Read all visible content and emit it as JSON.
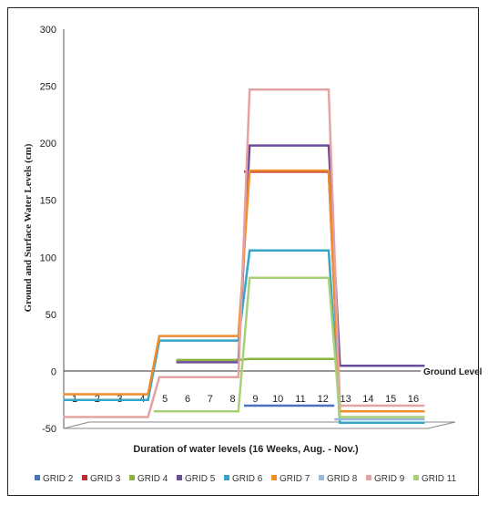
{
  "chart_data": {
    "type": "line",
    "title": "",
    "xlabel": "Duration of water levels (16 Weeks, Aug. - Nov.)",
    "ylabel": "Ground and Surface Water Levels (cm)",
    "ylim": [
      -50,
      300
    ],
    "yticks": [
      "300",
      "250",
      "200",
      "150",
      "100",
      "50",
      "0",
      "-50"
    ],
    "xticks": [
      "1",
      "2",
      "3",
      "4",
      "5",
      "6",
      "7",
      "8",
      "9",
      "10",
      "11",
      "12",
      "13",
      "14",
      "15",
      "16"
    ],
    "x": [
      1,
      2,
      3,
      4,
      5,
      6,
      7,
      8,
      9,
      10,
      11,
      12,
      13,
      14,
      15,
      16
    ],
    "annotation": "Ground Level",
    "grid": false,
    "legend_position": "bottom",
    "series": [
      {
        "name": "GRID 2",
        "color": "#4a72b8",
        "values": [
          null,
          null,
          null,
          null,
          null,
          null,
          null,
          null,
          -30,
          -30,
          -30,
          -30,
          null,
          null,
          null,
          null
        ]
      },
      {
        "name": "GRID 3",
        "color": "#b83232",
        "values": [
          null,
          null,
          null,
          null,
          null,
          null,
          null,
          null,
          175,
          175,
          175,
          175,
          -35,
          -35,
          -35,
          -35
        ]
      },
      {
        "name": "GRID 4",
        "color": "#8cb43c",
        "values": [
          null,
          null,
          null,
          null,
          null,
          10,
          10,
          10,
          11,
          11,
          11,
          11,
          null,
          null,
          null,
          null
        ]
      },
      {
        "name": "GRID 5",
        "color": "#6a4c9c",
        "values": [
          null,
          null,
          null,
          null,
          null,
          8,
          8,
          8,
          198,
          198,
          198,
          198,
          5,
          5,
          5,
          5
        ]
      },
      {
        "name": "GRID 6",
        "color": "#34a5c6",
        "values": [
          -25,
          -25,
          -25,
          -25,
          27,
          27,
          27,
          27,
          106,
          106,
          106,
          106,
          -45,
          -45,
          -45,
          -45
        ]
      },
      {
        "name": "GRID 7",
        "color": "#f08c2c",
        "values": [
          -20,
          -20,
          -20,
          -20,
          31,
          31,
          31,
          31,
          176,
          176,
          176,
          176,
          -35,
          -35,
          -35,
          -35
        ]
      },
      {
        "name": "GRID 8",
        "color": "#9bb8de",
        "values": [
          null,
          null,
          null,
          null,
          null,
          null,
          null,
          null,
          null,
          null,
          null,
          null,
          -42,
          -42,
          -42,
          -42
        ]
      },
      {
        "name": "GRID 9",
        "color": "#e3a3a3",
        "values": [
          -40,
          -40,
          -40,
          -40,
          -5,
          -5,
          -5,
          -5,
          247,
          247,
          247,
          247,
          -30,
          -30,
          -30,
          -30
        ]
      },
      {
        "name": "GRID 11",
        "color": "#a8d078",
        "values": [
          null,
          null,
          null,
          null,
          -35,
          -35,
          -35,
          -35,
          82,
          82,
          82,
          82,
          -40,
          -40,
          -40,
          -40
        ]
      }
    ]
  }
}
